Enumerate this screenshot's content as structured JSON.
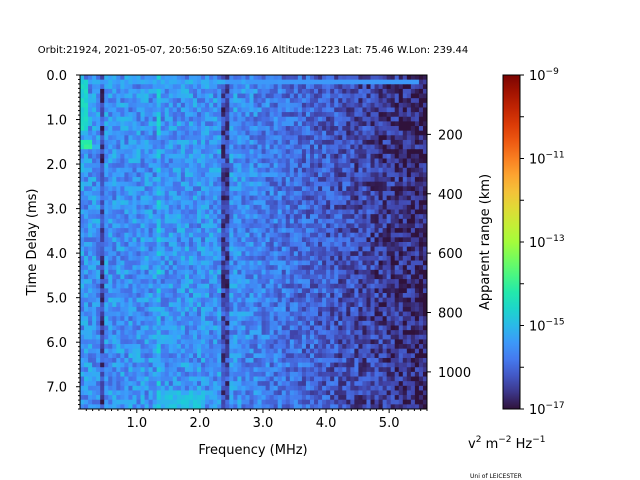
{
  "chart_data": {
    "type": "heatmap",
    "title": "Orbit:21924, 2021-05-07, 20:56:50 SZA:69.16 Altitude:1223 Lat: 75.46 W.Lon: 239.44",
    "xlabel": "Frequency (MHz)",
    "ylabel": "Time Delay (ms)",
    "y2label": "Apparent range (km)",
    "xlim": [
      0.1,
      5.6
    ],
    "ylim": [
      7.5,
      0.0
    ],
    "x_ticks": [
      1.0,
      2.0,
      3.0,
      4.0,
      5.0
    ],
    "x_tick_labels": [
      "1.0",
      "2.0",
      "3.0",
      "4.0",
      "5.0"
    ],
    "y_ticks": [
      0.0,
      1.0,
      2.0,
      3.0,
      4.0,
      5.0,
      6.0,
      7.0
    ],
    "y_tick_labels": [
      "0.0",
      "1.0",
      "2.0",
      "3.0",
      "4.0",
      "5.0",
      "6.0",
      "7.0"
    ],
    "y2_ticks": [
      200,
      400,
      600,
      800,
      1000
    ],
    "y2_tick_labels": [
      "200",
      "400",
      "600",
      "800",
      "1000"
    ],
    "colorbar": {
      "scale": "log",
      "range": [
        1e-17,
        1e-09
      ],
      "tick_labels": [
        "10−9",
        "10−11",
        "10−13",
        "10−15",
        "10−17"
      ],
      "tick_exponents": [
        -9,
        -11,
        -13,
        -15,
        -17
      ],
      "unit_label": "v2 m−2 Hz−1",
      "colormap": "turbo"
    },
    "features": {
      "surface_echo_delay_ms": 0.15,
      "vertical_dark_lines_mhz": [
        0.45,
        2.4
      ],
      "faint_vertical_line_mhz": 1.35,
      "bright_patches": [
        {
          "freq_mhz": [
            0.1,
            2.4
          ],
          "delay_ms": [
            0.1,
            0.25
          ],
          "level_exp": -15.3
        },
        {
          "freq_mhz": [
            0.1,
            0.25
          ],
          "delay_ms": [
            0.1,
            1.2
          ],
          "level_exp": -14.6
        },
        {
          "freq_mhz": [
            0.1,
            0.3
          ],
          "delay_ms": [
            1.5,
            1.7
          ],
          "level_exp": -14.2
        },
        {
          "freq_mhz": [
            1.3,
            2.1
          ],
          "delay_ms": [
            7.1,
            7.5
          ],
          "level_exp": -15.0
        }
      ],
      "background_level_exp_low_freq": -15.5,
      "background_level_exp_high_freq": -16.8
    }
  },
  "footer": {
    "credit": "Uni of LEICESTER"
  },
  "colors": {
    "turbo_stops": [
      "#30123b",
      "#4145ab",
      "#4675ed",
      "#39a2fc",
      "#1bcfd4",
      "#24eca6",
      "#61fc6c",
      "#a4fc3b",
      "#d1e834",
      "#f3c63a",
      "#fe9b2d",
      "#f36315",
      "#d93806",
      "#b11901",
      "#7a0402"
    ]
  }
}
